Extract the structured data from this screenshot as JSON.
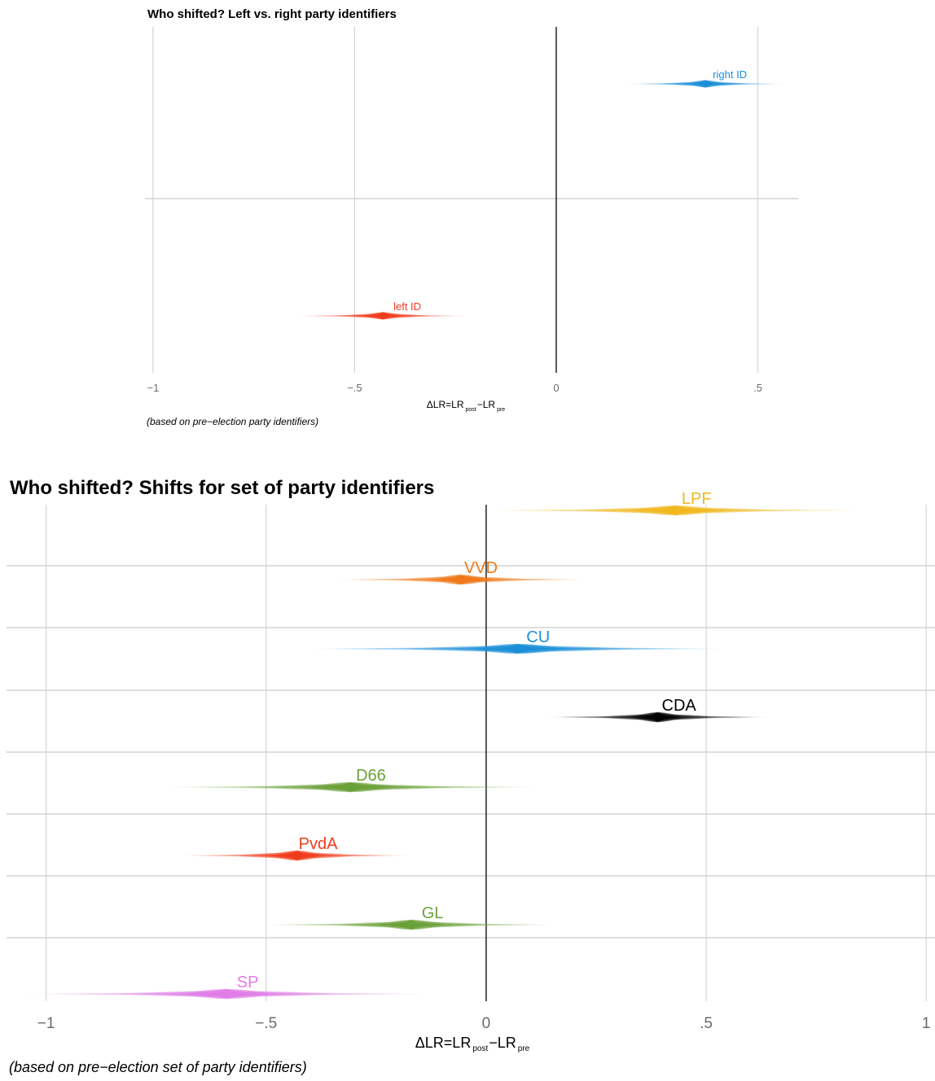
{
  "chart_data": [
    {
      "type": "forest",
      "title": "Who shifted? Left vs. right party identifiers",
      "xlabel": {
        "base": "ΔLR=LR",
        "sub1": "post",
        "mid": "−LR",
        "sub2": "pre"
      },
      "caption": "(based on pre−election party identifiers)",
      "xlim": [
        -1.02,
        0.6
      ],
      "xticks": [
        -1,
        -0.5,
        0,
        0.5
      ],
      "xtick_labels": [
        "−1",
        "−.5",
        "0",
        ".5"
      ],
      "grid": true,
      "series": [
        {
          "name": "right ID",
          "estimate": 0.37,
          "low": 0.17,
          "high": 0.57,
          "color": "#1a8fd8"
        },
        {
          "name": "left ID",
          "estimate": -0.43,
          "low": -0.64,
          "high": -0.22,
          "color": "#f03c1c"
        }
      ]
    },
    {
      "type": "forest",
      "title": "Who shifted? Shifts for set of party identifiers",
      "xlabel": {
        "base": "ΔLR=LR",
        "sub1": "post",
        "mid": "−LR",
        "sub2": "pre"
      },
      "caption": "(based on pre−election set of party identifiers)",
      "xlim": [
        -1.09,
        1.02
      ],
      "xticks": [
        -1,
        -0.5,
        0,
        0.5,
        1
      ],
      "xtick_labels": [
        "−1",
        "−.5",
        "0",
        ".5",
        "1"
      ],
      "grid": true,
      "series": [
        {
          "name": "LPF",
          "estimate": 0.43,
          "low": 0.0,
          "high": 0.86,
          "color": "#f0b81e"
        },
        {
          "name": "VVD",
          "estimate": -0.06,
          "low": -0.34,
          "high": 0.23,
          "color": "#f07818"
        },
        {
          "name": "CU",
          "estimate": 0.07,
          "low": -0.4,
          "high": 0.55,
          "color": "#1a8fd8"
        },
        {
          "name": "CDA",
          "estimate": 0.39,
          "low": 0.14,
          "high": 0.64,
          "color": "#000000"
        },
        {
          "name": "D66",
          "estimate": -0.31,
          "low": -0.73,
          "high": 0.12,
          "color": "#6aa038"
        },
        {
          "name": "PvdA",
          "estimate": -0.43,
          "low": -0.69,
          "high": -0.17,
          "color": "#f03c1c"
        },
        {
          "name": "GL",
          "estimate": -0.17,
          "low": -0.5,
          "high": 0.16,
          "color": "#6aa038"
        },
        {
          "name": "SP",
          "estimate": -0.59,
          "low": -1.05,
          "high": -0.13,
          "color": "#e07ce6"
        }
      ]
    }
  ]
}
